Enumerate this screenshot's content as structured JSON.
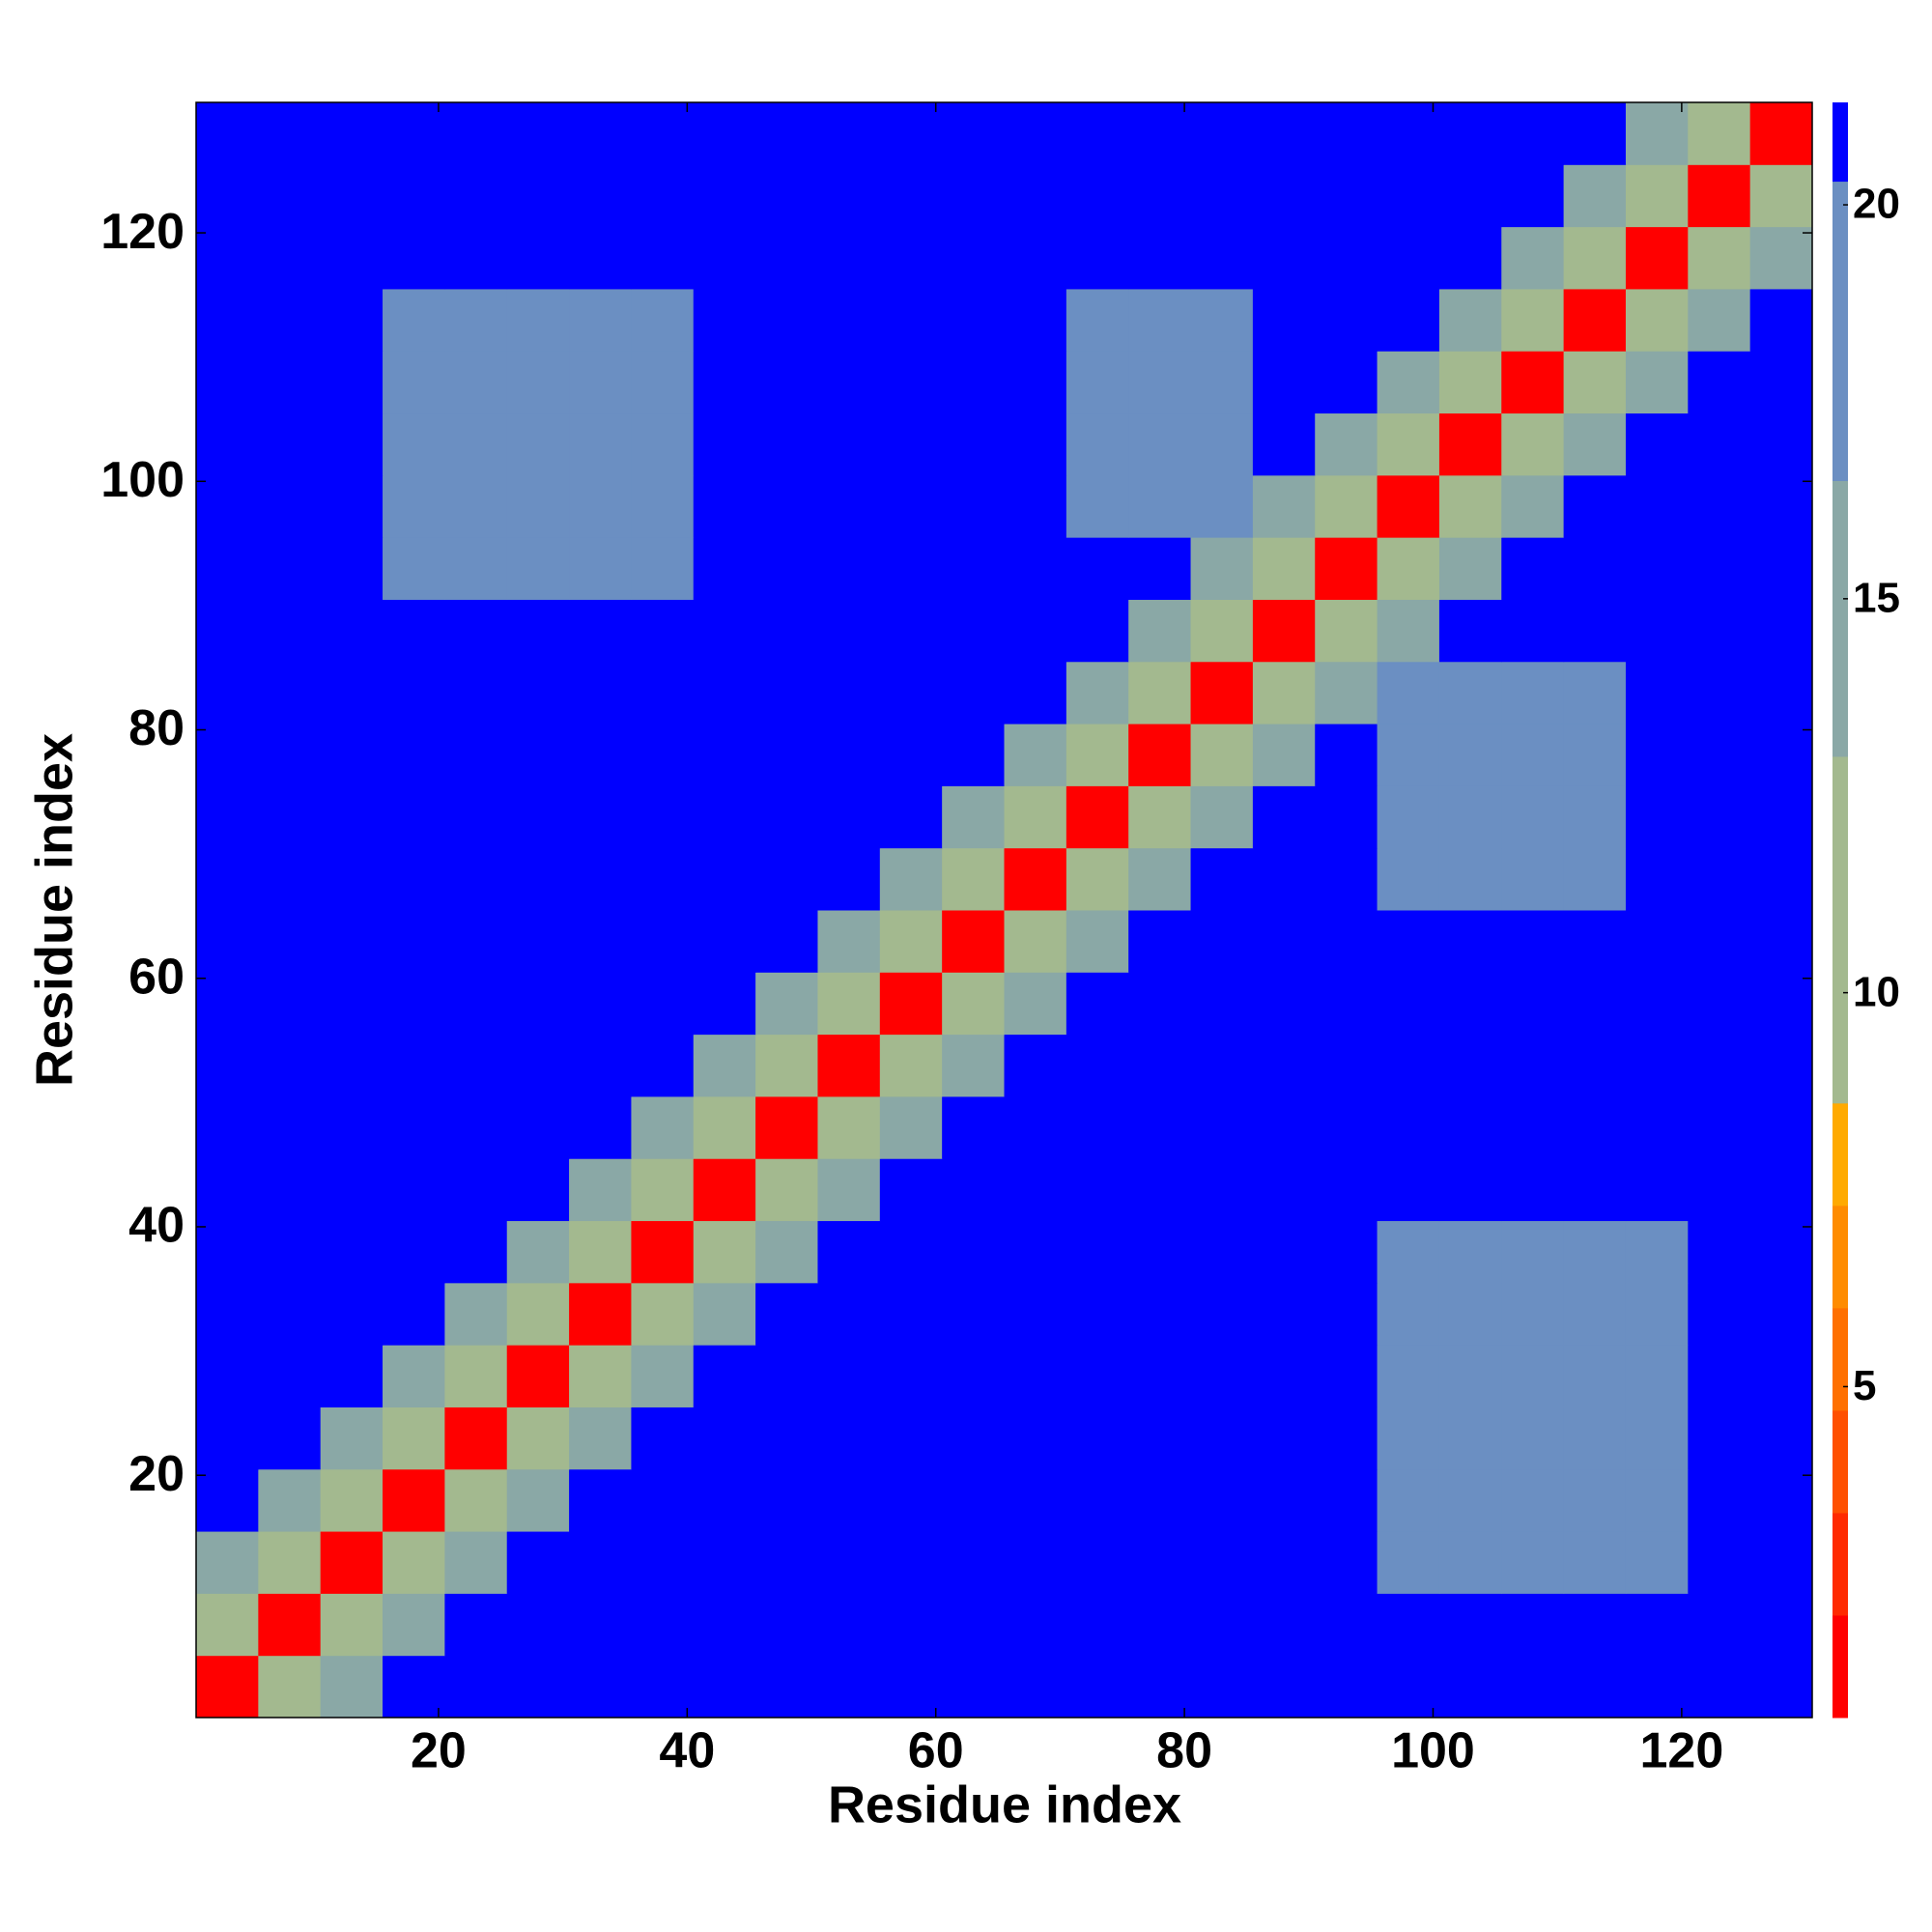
{
  "chart_data": {
    "type": "heatmap",
    "xlabel": "Residue index",
    "ylabel": "Residue index",
    "x": [
      3,
      8,
      13,
      18,
      23,
      28,
      33,
      38,
      43,
      48,
      53,
      58,
      63,
      68,
      73,
      78,
      83,
      88,
      93,
      98,
      103,
      108,
      113,
      118,
      123,
      128
    ],
    "y": [
      3,
      8,
      13,
      18,
      23,
      28,
      33,
      38,
      43,
      48,
      53,
      58,
      63,
      68,
      73,
      78,
      83,
      88,
      93,
      98,
      103,
      108,
      113,
      118,
      123,
      128
    ],
    "xlim": [
      0.5,
      130.5
    ],
    "ylim": [
      0.5,
      130.5
    ],
    "xticks": [
      20,
      40,
      60,
      80,
      100,
      120
    ],
    "yticks": [
      20,
      40,
      60,
      80,
      100,
      120
    ],
    "clim": [
      0.8,
      21.3
    ],
    "cticks": [
      5,
      10,
      15,
      20
    ],
    "colorscale": [
      {
        "value": 0.8,
        "color": "#ff0000"
      },
      {
        "value": 2.1,
        "color": "#ff2a00"
      },
      {
        "value": 3.4,
        "color": "#ff5000"
      },
      {
        "value": 4.7,
        "color": "#ff7000"
      },
      {
        "value": 6,
        "color": "#ff8c00"
      },
      {
        "value": 7.3,
        "color": "#ffaa00"
      },
      {
        "value": 8.6,
        "color": "#a3b98f"
      },
      {
        "value": 13,
        "color": "#8aa8a6"
      },
      {
        "value": 16.5,
        "color": "#6b8fc2"
      },
      {
        "value": 20.3,
        "color": "#0000ff"
      }
    ],
    "z": [
      [
        2,
        10,
        16,
        21,
        21,
        21,
        21,
        21,
        21,
        21,
        21,
        21,
        21,
        21,
        21,
        21,
        21,
        21,
        21,
        21,
        21,
        21,
        21,
        21,
        21,
        21
      ],
      [
        10,
        2,
        10,
        16,
        21,
        21,
        21,
        21,
        21,
        21,
        21,
        21,
        21,
        21,
        21,
        21,
        21,
        21,
        21,
        21,
        21,
        21,
        21,
        21,
        21,
        21
      ],
      [
        16,
        10,
        2,
        10,
        16,
        21,
        21,
        21,
        21,
        21,
        21,
        21,
        21,
        21,
        21,
        21,
        21,
        21,
        21,
        18,
        18,
        18,
        18,
        18,
        21,
        21
      ],
      [
        21,
        16,
        10,
        2,
        10,
        16,
        21,
        21,
        21,
        21,
        21,
        21,
        21,
        21,
        21,
        21,
        21,
        21,
        21,
        18,
        18,
        18,
        18,
        18,
        21,
        21
      ],
      [
        21,
        21,
        16,
        10,
        2,
        10,
        16,
        21,
        21,
        21,
        21,
        21,
        21,
        21,
        21,
        21,
        21,
        21,
        21,
        18,
        18,
        18,
        18,
        18,
        21,
        21
      ],
      [
        21,
        21,
        21,
        16,
        10,
        2,
        10,
        16,
        21,
        21,
        21,
        21,
        21,
        21,
        21,
        21,
        21,
        21,
        21,
        18,
        18,
        18,
        18,
        18,
        21,
        21
      ],
      [
        21,
        21,
        21,
        21,
        16,
        10,
        2,
        10,
        16,
        21,
        21,
        21,
        21,
        21,
        21,
        21,
        21,
        21,
        21,
        18,
        18,
        18,
        18,
        18,
        21,
        21
      ],
      [
        21,
        21,
        21,
        21,
        21,
        16,
        10,
        2,
        10,
        16,
        21,
        21,
        21,
        21,
        21,
        21,
        21,
        21,
        21,
        18,
        18,
        18,
        18,
        18,
        21,
        21
      ],
      [
        21,
        21,
        21,
        21,
        21,
        21,
        16,
        10,
        2,
        10,
        16,
        21,
        21,
        21,
        21,
        21,
        21,
        21,
        21,
        21,
        21,
        21,
        21,
        21,
        21,
        21
      ],
      [
        21,
        21,
        21,
        21,
        21,
        21,
        21,
        16,
        10,
        2,
        10,
        16,
        21,
        21,
        21,
        21,
        21,
        21,
        21,
        21,
        21,
        21,
        21,
        21,
        21,
        21
      ],
      [
        21,
        21,
        21,
        21,
        21,
        21,
        21,
        21,
        16,
        10,
        2,
        10,
        16,
        21,
        21,
        21,
        21,
        21,
        21,
        21,
        21,
        21,
        21,
        21,
        21,
        21
      ],
      [
        21,
        21,
        21,
        21,
        21,
        21,
        21,
        21,
        21,
        16,
        10,
        2,
        10,
        16,
        21,
        21,
        21,
        21,
        21,
        21,
        21,
        21,
        21,
        21,
        21,
        21
      ],
      [
        21,
        21,
        21,
        21,
        21,
        21,
        21,
        21,
        21,
        21,
        16,
        10,
        2,
        10,
        16,
        21,
        21,
        21,
        21,
        21,
        21,
        21,
        21,
        21,
        21,
        21
      ],
      [
        21,
        21,
        21,
        21,
        21,
        21,
        21,
        21,
        21,
        21,
        21,
        16,
        10,
        2,
        10,
        16,
        21,
        21,
        21,
        19,
        19,
        19,
        19,
        21,
        21,
        21
      ],
      [
        21,
        21,
        21,
        21,
        21,
        21,
        21,
        21,
        21,
        21,
        21,
        21,
        16,
        10,
        2,
        10,
        16,
        21,
        21,
        19,
        19,
        19,
        19,
        21,
        21,
        21
      ],
      [
        21,
        21,
        21,
        21,
        21,
        21,
        21,
        21,
        21,
        21,
        21,
        21,
        21,
        16,
        10,
        2,
        10,
        16,
        21,
        19,
        19,
        19,
        19,
        21,
        21,
        21
      ],
      [
        21,
        21,
        21,
        21,
        21,
        21,
        21,
        21,
        21,
        21,
        21,
        21,
        21,
        21,
        16,
        10,
        2,
        10,
        16,
        19,
        19,
        19,
        19,
        21,
        21,
        21
      ],
      [
        21,
        21,
        21,
        21,
        21,
        21,
        21,
        21,
        21,
        21,
        21,
        21,
        21,
        21,
        21,
        16,
        10,
        2,
        10,
        16,
        21,
        21,
        21,
        21,
        21,
        21
      ],
      [
        21,
        21,
        21,
        18,
        18,
        18,
        18,
        18,
        21,
        21,
        21,
        21,
        21,
        21,
        21,
        21,
        16,
        10,
        2,
        10,
        16,
        21,
        21,
        21,
        21,
        21
      ],
      [
        21,
        21,
        21,
        18,
        18,
        18,
        18,
        18,
        21,
        21,
        21,
        21,
        21,
        21,
        19,
        19,
        19,
        16,
        10,
        2,
        10,
        16,
        21,
        21,
        21,
        21
      ],
      [
        21,
        21,
        21,
        18,
        18,
        18,
        18,
        18,
        21,
        21,
        21,
        21,
        21,
        21,
        19,
        19,
        19,
        21,
        16,
        10,
        2,
        10,
        16,
        21,
        21,
        21
      ],
      [
        21,
        21,
        21,
        18,
        18,
        18,
        18,
        18,
        21,
        21,
        21,
        21,
        21,
        21,
        19,
        19,
        19,
        21,
        21,
        16,
        10,
        2,
        10,
        16,
        21,
        21
      ],
      [
        21,
        21,
        21,
        18,
        18,
        18,
        18,
        18,
        21,
        21,
        21,
        21,
        21,
        21,
        19,
        19,
        19,
        21,
        21,
        21,
        16,
        10,
        2,
        10,
        16,
        21
      ],
      [
        21,
        21,
        21,
        21,
        21,
        21,
        21,
        21,
        21,
        21,
        21,
        21,
        21,
        21,
        21,
        21,
        21,
        21,
        21,
        21,
        21,
        16,
        10,
        2,
        10,
        16
      ],
      [
        21,
        21,
        21,
        21,
        21,
        21,
        21,
        21,
        21,
        21,
        21,
        21,
        21,
        21,
        21,
        21,
        21,
        21,
        21,
        21,
        21,
        21,
        16,
        10,
        2,
        10
      ],
      [
        21,
        21,
        21,
        21,
        21,
        21,
        21,
        21,
        21,
        21,
        21,
        21,
        21,
        21,
        21,
        21,
        21,
        21,
        21,
        21,
        21,
        21,
        21,
        16,
        10,
        2
      ]
    ]
  }
}
